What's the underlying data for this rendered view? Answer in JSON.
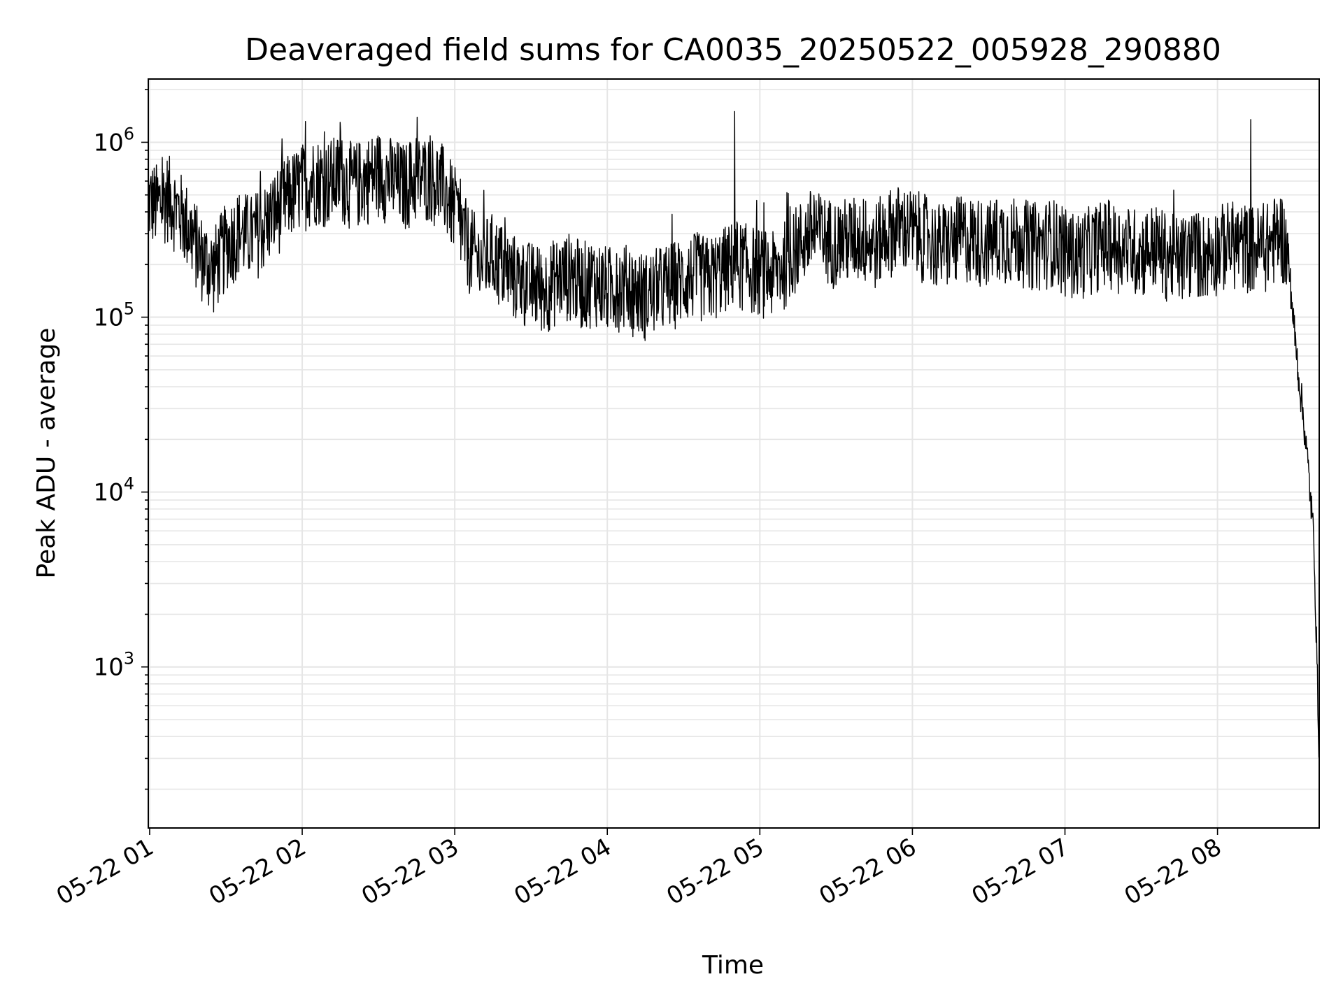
{
  "chart_data": {
    "type": "line",
    "title": "Deaveraged field sums for CA0035_20250522_005928_290880",
    "xlabel": "Time",
    "ylabel": "Peak ADU - average",
    "yscale": "log",
    "ylim": [
      120,
      2300000
    ],
    "xlim": [
      "2025-05-22 00:59:28",
      "2025-05-22 08:40:00"
    ],
    "grid": true,
    "x_tick_labels": [
      "05-22 01",
      "05-22 02",
      "05-22 03",
      "05-22 04",
      "05-22 05",
      "05-22 06",
      "05-22 07",
      "05-22 08"
    ],
    "x_ticks": [
      "2025-05-22 01:00",
      "2025-05-22 02:00",
      "2025-05-22 03:00",
      "2025-05-22 04:00",
      "2025-05-22 05:00",
      "2025-05-22 06:00",
      "2025-05-22 07:00",
      "2025-05-22 08:00"
    ],
    "y_ticks": [
      {
        "value": 1000,
        "base": "10",
        "exp": "3"
      },
      {
        "value": 10000,
        "base": "10",
        "exp": "4"
      },
      {
        "value": 100000,
        "base": "10",
        "exp": "5"
      },
      {
        "value": 1000000,
        "base": "10",
        "exp": "6"
      }
    ],
    "line_color": "#000000",
    "series": [
      {
        "x": [
          "2025-05-22 00:59:28",
          "2025-05-22 01:03",
          "2025-05-22 01:07",
          "2025-05-22 01:12",
          "2025-05-22 01:16",
          "2025-05-22 01:20",
          "2025-05-22 01:25",
          "2025-05-22 01:30",
          "2025-05-22 01:35",
          "2025-05-22 01:40",
          "2025-05-22 01:45",
          "2025-05-22 01:50",
          "2025-05-22 01:55",
          "2025-05-22 02:00",
          "2025-05-22 02:05",
          "2025-05-22 02:10",
          "2025-05-22 02:15",
          "2025-05-22 02:20",
          "2025-05-22 02:25",
          "2025-05-22 02:30",
          "2025-05-22 02:35",
          "2025-05-22 02:40",
          "2025-05-22 02:45",
          "2025-05-22 02:50",
          "2025-05-22 02:55",
          "2025-05-22 03:00",
          "2025-05-22 03:05",
          "2025-05-22 03:10",
          "2025-05-22 03:15",
          "2025-05-22 03:20",
          "2025-05-22 03:25",
          "2025-05-22 03:30",
          "2025-05-22 03:35",
          "2025-05-22 03:40",
          "2025-05-22 03:45",
          "2025-05-22 03:50",
          "2025-05-22 03:55",
          "2025-05-22 04:00",
          "2025-05-22 04:05",
          "2025-05-22 04:10",
          "2025-05-22 04:15",
          "2025-05-22 04:20",
          "2025-05-22 04:25",
          "2025-05-22 04:30",
          "2025-05-22 04:35",
          "2025-05-22 04:40",
          "2025-05-22 04:45",
          "2025-05-22 04:50",
          "2025-05-22 04:55",
          "2025-05-22 05:00",
          "2025-05-22 05:05",
          "2025-05-22 05:10",
          "2025-05-22 05:15",
          "2025-05-22 05:20",
          "2025-05-22 05:25",
          "2025-05-22 05:30",
          "2025-05-22 05:35",
          "2025-05-22 05:40",
          "2025-05-22 05:45",
          "2025-05-22 05:50",
          "2025-05-22 05:55",
          "2025-05-22 06:00",
          "2025-05-22 06:05",
          "2025-05-22 06:10",
          "2025-05-22 06:15",
          "2025-05-22 06:20",
          "2025-05-22 06:25",
          "2025-05-22 06:30",
          "2025-05-22 06:35",
          "2025-05-22 06:40",
          "2025-05-22 06:45",
          "2025-05-22 06:50",
          "2025-05-22 06:55",
          "2025-05-22 07:00",
          "2025-05-22 07:05",
          "2025-05-22 07:10",
          "2025-05-22 07:15",
          "2025-05-22 07:20",
          "2025-05-22 07:25",
          "2025-05-22 07:30",
          "2025-05-22 07:35",
          "2025-05-22 07:40",
          "2025-05-22 07:45",
          "2025-05-22 07:50",
          "2025-05-22 07:55",
          "2025-05-22 08:00",
          "2025-05-22 08:05",
          "2025-05-22 08:10",
          "2025-05-22 08:15",
          "2025-05-22 08:20",
          "2025-05-22 08:25",
          "2025-05-22 08:28",
          "2025-05-22 08:30",
          "2025-05-22 08:32",
          "2025-05-22 08:34",
          "2025-05-22 08:36",
          "2025-05-22 08:38",
          "2025-05-22 08:40"
        ],
        "y": [
          450000,
          420000,
          480000,
          380000,
          300000,
          220000,
          180000,
          250000,
          300000,
          280000,
          320000,
          400000,
          480000,
          550000,
          600000,
          580000,
          620000,
          550000,
          600000,
          650000,
          600000,
          550000,
          600000,
          620000,
          550000,
          400000,
          250000,
          200000,
          220000,
          180000,
          160000,
          150000,
          140000,
          160000,
          170000,
          150000,
          160000,
          140000,
          150000,
          140000,
          130000,
          140000,
          150000,
          160000,
          170000,
          160000,
          180000,
          200000,
          190000,
          180000,
          170000,
          200000,
          250000,
          300000,
          280000,
          260000,
          270000,
          280000,
          250000,
          300000,
          320000,
          300000,
          280000,
          250000,
          260000,
          280000,
          270000,
          260000,
          280000,
          270000,
          260000,
          250000,
          270000,
          230000,
          220000,
          240000,
          260000,
          250000,
          240000,
          230000,
          250000,
          220000,
          210000,
          230000,
          220000,
          240000,
          260000,
          250000,
          240000,
          250000,
          300000,
          200000,
          90000,
          45000,
          25000,
          12000,
          5000,
          300
        ]
      }
    ],
    "fluctuation_envelope": {
      "upper_factor": 2.2,
      "lower_factor": 0.45,
      "notable_peaks": [
        {
          "x": "2025-05-22 04:50",
          "y": 1500000
        },
        {
          "x": "2025-05-22 08:13",
          "y": 1350000
        },
        {
          "x": "2025-05-22 02:15",
          "y": 1300000
        }
      ]
    }
  }
}
